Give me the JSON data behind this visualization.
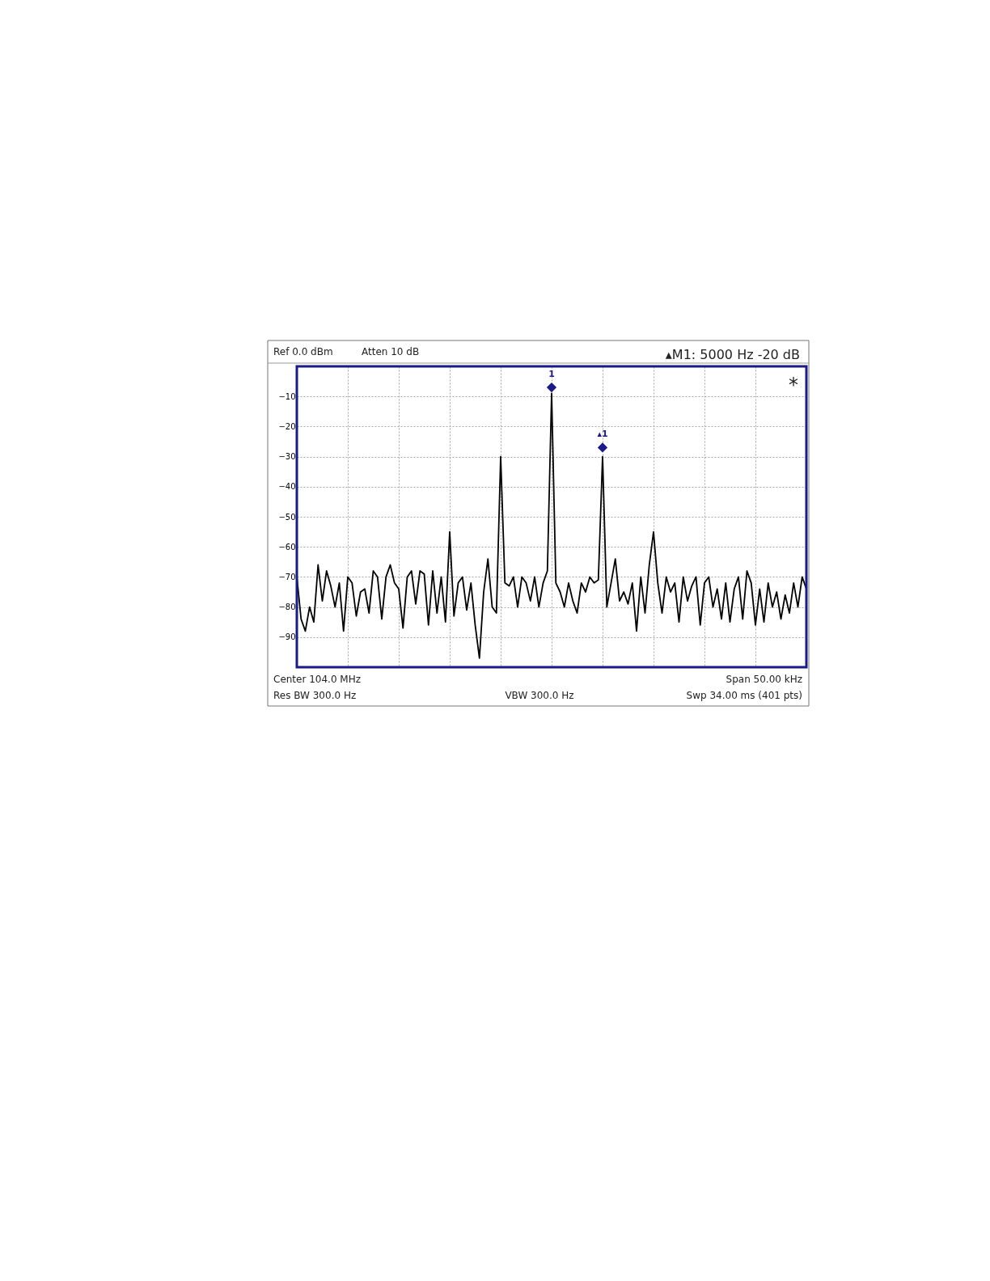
{
  "chart_data": {
    "type": "line",
    "categories": [
      null,
      null,
      null,
      null,
      null,
      null,
      null,
      null,
      null,
      null,
      null,
      null,
      null,
      null,
      null,
      null,
      null,
      null,
      null,
      null,
      null,
      null,
      null,
      null,
      null,
      null,
      null,
      null,
      null,
      null,
      null,
      null,
      null,
      null,
      null,
      null,
      null,
      null,
      null,
      null,
      null,
      null,
      null,
      null,
      null,
      null,
      null,
      null,
      null,
      null,
      null,
      null,
      null,
      null,
      null,
      null,
      null,
      null,
      null,
      null,
      null,
      null,
      null,
      null,
      null,
      null,
      null,
      null,
      null,
      null,
      null,
      null,
      null,
      null,
      null,
      null,
      null,
      null,
      null,
      null,
      null,
      null,
      null,
      null,
      null,
      null,
      null,
      null,
      null,
      null,
      null,
      null,
      null,
      null,
      null,
      null,
      null,
      null,
      null,
      null,
      null,
      null,
      null,
      null,
      null,
      null,
      null,
      null,
      null,
      null,
      null,
      null,
      null,
      null,
      null,
      null,
      null,
      null,
      null,
      null,
      null
    ],
    "series": [
      {
        "color": "#000000",
        "values": [
          -70,
          -84,
          -88,
          -80,
          -85,
          -66,
          -78,
          -68,
          -73,
          -80,
          -72,
          -88,
          -70,
          -72,
          -83,
          -75,
          -74,
          -82,
          -68,
          -70,
          -84,
          -70,
          -66,
          -72,
          -74,
          -87,
          -70,
          -68,
          -79,
          -68,
          -69,
          -86,
          -68,
          -82,
          -70,
          -85,
          -55,
          -83,
          -72,
          -70,
          -81,
          -72,
          -86,
          -97,
          -75,
          -64,
          -80,
          -82,
          -30,
          -72,
          -73,
          -70,
          -80,
          -70,
          -72,
          -78,
          -70,
          -80,
          -72,
          -68,
          -9,
          -72,
          -75,
          -80,
          -72,
          -78,
          -82,
          -72,
          -75,
          -70,
          -72,
          -71,
          -30,
          -80,
          -72,
          -64,
          -78,
          -75,
          -79,
          -72,
          -88,
          -70,
          -82,
          -66,
          -55,
          -72,
          -82,
          -70,
          -75,
          -72,
          -85,
          -70,
          -78,
          -73,
          -70,
          -86,
          -72,
          -70,
          -80,
          -74,
          -84,
          -72,
          -85,
          -74,
          -70,
          -84,
          -68,
          -72,
          -86,
          -74,
          -85,
          -72,
          -80,
          -75,
          -84,
          -76,
          -82,
          -72,
          -80,
          -70,
          -74
        ]
      },
      {
        "type": "scatter",
        "name": "1",
        "marker": "diamond",
        "color": "#1a1a8c",
        "values": [
          null,
          null,
          null,
          null,
          null,
          null,
          null,
          null,
          null,
          null,
          null,
          null,
          null,
          null,
          null,
          null,
          null,
          null,
          null,
          null,
          null,
          null,
          null,
          null,
          null,
          null,
          null,
          null,
          null,
          null,
          null,
          null,
          null,
          null,
          null,
          null,
          null,
          null,
          null,
          null,
          null,
          null,
          null,
          null,
          null,
          null,
          null,
          null,
          null,
          null,
          null,
          null,
          null,
          null,
          null,
          null,
          null,
          null,
          null,
          null,
          -7,
          null,
          null,
          null,
          null,
          null,
          null,
          null,
          null,
          null,
          null,
          null,
          null,
          null,
          null,
          null,
          null,
          null,
          null,
          null,
          null,
          null,
          null,
          null,
          null,
          null,
          null,
          null,
          null,
          null,
          null,
          null,
          null,
          null,
          null,
          null,
          null,
          null,
          null,
          null,
          null,
          null,
          null,
          null,
          null,
          null,
          null,
          null,
          null,
          null,
          null,
          null,
          null,
          null,
          null,
          null,
          null,
          null,
          null,
          null,
          null
        ]
      },
      {
        "type": "scatter",
        "name": "▴1",
        "marker": "diamond",
        "color": "#1a1a8c",
        "values": [
          null,
          null,
          null,
          null,
          null,
          null,
          null,
          null,
          null,
          null,
          null,
          null,
          null,
          null,
          null,
          null,
          null,
          null,
          null,
          null,
          null,
          null,
          null,
          null,
          null,
          null,
          null,
          null,
          null,
          null,
          null,
          null,
          null,
          null,
          null,
          null,
          null,
          null,
          null,
          null,
          null,
          null,
          null,
          null,
          null,
          null,
          null,
          null,
          null,
          null,
          null,
          null,
          null,
          null,
          null,
          null,
          null,
          null,
          null,
          null,
          null,
          null,
          null,
          null,
          null,
          null,
          null,
          null,
          null,
          null,
          null,
          null,
          -27,
          null,
          null,
          null,
          null,
          null,
          null,
          null,
          null,
          null,
          null,
          null,
          null,
          null,
          null,
          null,
          null,
          null,
          null,
          null,
          null,
          null,
          null,
          null,
          null,
          null,
          null,
          null,
          null,
          null,
          null,
          null,
          null,
          null,
          null,
          null,
          null,
          null,
          null,
          null,
          null,
          null,
          null,
          null,
          null,
          null,
          null,
          null,
          null
        ]
      }
    ],
    "ylim": [
      -100,
      0
    ],
    "yticks": [
      -10,
      -20,
      -30,
      -40,
      -50,
      -60,
      -70,
      -80,
      -90
    ],
    "grid": true,
    "tick_labels": "y",
    "line_style": "solid",
    "annotations": [
      "Ref 0.0 dBm",
      "Atten 10 dB",
      "▴M1:  5000 Hz  -20 dB",
      "*",
      "Center 104.0 MHz",
      "Span 50.00 kHz",
      "Res BW 300.0  Hz",
      "VBW 300.0  Hz",
      "Swp 34.00 ms (401 pts)"
    ]
  }
}
